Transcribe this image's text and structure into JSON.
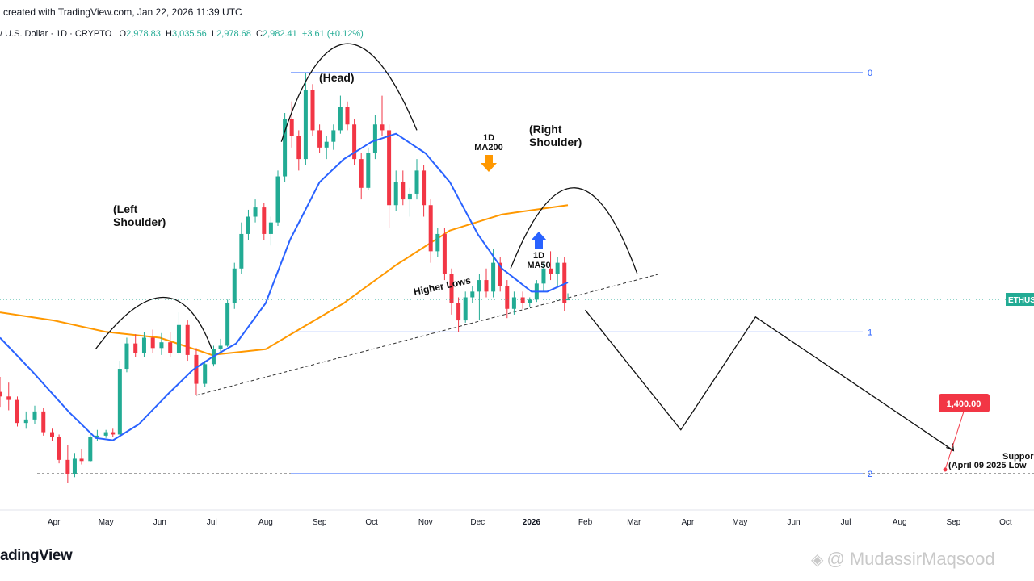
{
  "header": {
    "created_text": "created with TradingView.com, Jan 22, 2026 11:39 UTC"
  },
  "symbol": {
    "name": "/ U.S. Dollar · 1D · CRYPTO",
    "open_label": "O",
    "open": "2,978.83",
    "high_label": "H",
    "high": "3,035.56",
    "low_label": "L",
    "low": "2,978.68",
    "close_label": "C",
    "close": "2,982.41",
    "change": "+3.61 (+0.12%)"
  },
  "footer": {
    "logo": "adingView",
    "watermark": "@ MudassirMaqsood"
  },
  "colors": {
    "up": "#22ab94",
    "down": "#f23645",
    "ma50": "#2962ff",
    "ma200": "#ff9800",
    "fib": "#2962ff",
    "price_tag": "#f23645",
    "symbol_tag": "#22ab94"
  },
  "chart_data": {
    "type": "candlestick",
    "x_axis": {
      "labels": [
        "Apr",
        "May",
        "Jun",
        "Jul",
        "Aug",
        "Sep",
        "Oct",
        "Nov",
        "Dec",
        "2026",
        "Feb",
        "Mar",
        "Apr",
        "May",
        "Jun",
        "Jul",
        "Aug",
        "Sep",
        "Oct"
      ],
      "start": "2025-03-01"
    },
    "y_axis": {
      "min": 1300,
      "max": 5200,
      "grid": false,
      "visible": false
    },
    "candles": [
      [
        "2025-03-01",
        2180,
        2310,
        2050,
        2140
      ],
      [
        "2025-03-06",
        2140,
        2260,
        2020,
        2110
      ],
      [
        "2025-03-11",
        2110,
        2140,
        1880,
        1910
      ],
      [
        "2025-03-16",
        1910,
        2010,
        1860,
        1940
      ],
      [
        "2025-03-21",
        1940,
        2060,
        1900,
        2010
      ],
      [
        "2025-03-26",
        2010,
        2040,
        1800,
        1830
      ],
      [
        "2025-03-31",
        1830,
        1860,
        1750,
        1790
      ],
      [
        "2025-04-04",
        1790,
        1810,
        1560,
        1590
      ],
      [
        "2025-04-09",
        1590,
        1720,
        1390,
        1470
      ],
      [
        "2025-04-13",
        1470,
        1650,
        1440,
        1600
      ],
      [
        "2025-04-17",
        1600,
        1680,
        1550,
        1580
      ],
      [
        "2025-04-22",
        1580,
        1820,
        1570,
        1790
      ],
      [
        "2025-04-26",
        1790,
        1850,
        1750,
        1800
      ],
      [
        "2025-05-01",
        1800,
        1850,
        1780,
        1830
      ],
      [
        "2025-05-05",
        1830,
        1860,
        1790,
        1810
      ],
      [
        "2025-05-09",
        1810,
        2450,
        1800,
        2380
      ],
      [
        "2025-05-13",
        2380,
        2650,
        2350,
        2600
      ],
      [
        "2025-05-18",
        2600,
        2680,
        2480,
        2520
      ],
      [
        "2025-05-23",
        2520,
        2700,
        2480,
        2650
      ],
      [
        "2025-05-28",
        2650,
        2720,
        2520,
        2560
      ],
      [
        "2025-06-02",
        2560,
        2690,
        2500,
        2610
      ],
      [
        "2025-06-07",
        2610,
        2700,
        2480,
        2520
      ],
      [
        "2025-06-12",
        2520,
        2870,
        2500,
        2760
      ],
      [
        "2025-06-17",
        2760,
        2800,
        2450,
        2500
      ],
      [
        "2025-06-22",
        2500,
        2560,
        2150,
        2250
      ],
      [
        "2025-06-27",
        2250,
        2450,
        2220,
        2420
      ],
      [
        "2025-07-02",
        2420,
        2580,
        2400,
        2550
      ],
      [
        "2025-07-06",
        2550,
        2640,
        2510,
        2580
      ],
      [
        "2025-07-10",
        2580,
        2980,
        2570,
        2950
      ],
      [
        "2025-07-14",
        2950,
        3300,
        2900,
        3250
      ],
      [
        "2025-07-18",
        3250,
        3650,
        3200,
        3550
      ],
      [
        "2025-07-22",
        3550,
        3760,
        3500,
        3700
      ],
      [
        "2025-07-26",
        3700,
        3850,
        3650,
        3780
      ],
      [
        "2025-07-31",
        3780,
        3820,
        3500,
        3550
      ],
      [
        "2025-08-04",
        3550,
        3700,
        3450,
        3650
      ],
      [
        "2025-08-08",
        3650,
        4100,
        3620,
        4050
      ],
      [
        "2025-08-12",
        4050,
        4600,
        4000,
        4550
      ],
      [
        "2025-08-16",
        4550,
        4700,
        4300,
        4400
      ],
      [
        "2025-08-20",
        4400,
        4450,
        4100,
        4200
      ],
      [
        "2025-08-24",
        4200,
        4950,
        4150,
        4800
      ],
      [
        "2025-08-28",
        4800,
        4850,
        4400,
        4450
      ],
      [
        "2025-09-01",
        4450,
        4500,
        4250,
        4300
      ],
      [
        "2025-09-05",
        4300,
        4400,
        4200,
        4350
      ],
      [
        "2025-09-09",
        4350,
        4500,
        4280,
        4450
      ],
      [
        "2025-09-13",
        4450,
        4750,
        4420,
        4650
      ],
      [
        "2025-09-17",
        4650,
        4700,
        4450,
        4500
      ],
      [
        "2025-09-21",
        4500,
        4550,
        4150,
        4200
      ],
      [
        "2025-09-25",
        4200,
        4250,
        3850,
        3950
      ],
      [
        "2025-09-29",
        3950,
        4300,
        3930,
        4250
      ],
      [
        "2025-10-03",
        4250,
        4580,
        4200,
        4500
      ],
      [
        "2025-10-07",
        4500,
        4750,
        4400,
        4450
      ],
      [
        "2025-10-11",
        4450,
        4500,
        3600,
        3800
      ],
      [
        "2025-10-15",
        3800,
        4100,
        3750,
        4000
      ],
      [
        "2025-10-19",
        4000,
        4100,
        3800,
        3850
      ],
      [
        "2025-10-23",
        3850,
        3950,
        3700,
        3900
      ],
      [
        "2025-10-27",
        3900,
        4200,
        3850,
        4100
      ],
      [
        "2025-10-31",
        4100,
        4150,
        3700,
        3800
      ],
      [
        "2025-11-04",
        3800,
        3850,
        3300,
        3400
      ],
      [
        "2025-11-08",
        3400,
        3600,
        3350,
        3550
      ],
      [
        "2025-11-12",
        3550,
        3600,
        3150,
        3200
      ],
      [
        "2025-11-16",
        3200,
        3250,
        2850,
        2950
      ],
      [
        "2025-11-20",
        2950,
        3000,
        2700,
        2800
      ],
      [
        "2025-11-24",
        2800,
        3050,
        2780,
        3000
      ],
      [
        "2025-11-28",
        3000,
        3100,
        2950,
        3050
      ],
      [
        "2025-12-02",
        3050,
        3200,
        2800,
        3150
      ],
      [
        "2025-12-06",
        3150,
        3250,
        3000,
        3050
      ],
      [
        "2025-12-10",
        3050,
        3420,
        3000,
        3300
      ],
      [
        "2025-12-14",
        3300,
        3350,
        3050,
        3100
      ],
      [
        "2025-12-18",
        3100,
        3150,
        2820,
        2900
      ],
      [
        "2025-12-22",
        2900,
        3050,
        2850,
        3000
      ],
      [
        "2025-12-27",
        3000,
        3050,
        2900,
        2950
      ],
      [
        "2025-12-31",
        2950,
        3000,
        2920,
        2980
      ],
      [
        "2026-01-04",
        2980,
        3150,
        2960,
        3120
      ],
      [
        "2026-01-08",
        3120,
        3300,
        3050,
        3250
      ],
      [
        "2026-01-12",
        3250,
        3400,
        3150,
        3200
      ],
      [
        "2026-01-16",
        3200,
        3350,
        3100,
        3300
      ],
      [
        "2026-01-20",
        3300,
        3350,
        2880,
        2950
      ],
      [
        "2026-01-22",
        2978,
        3035,
        2978,
        2982
      ]
    ],
    "ma50": [
      [
        "2025-03-01",
        2650
      ],
      [
        "2025-03-20",
        2350
      ],
      [
        "2025-04-10",
        2000
      ],
      [
        "2025-04-25",
        1780
      ],
      [
        "2025-05-05",
        1760
      ],
      [
        "2025-05-20",
        1900
      ],
      [
        "2025-06-05",
        2150
      ],
      [
        "2025-06-20",
        2370
      ],
      [
        "2025-07-01",
        2480
      ],
      [
        "2025-07-15",
        2600
      ],
      [
        "2025-08-01",
        2950
      ],
      [
        "2025-08-15",
        3500
      ],
      [
        "2025-09-01",
        4000
      ],
      [
        "2025-09-15",
        4200
      ],
      [
        "2025-10-01",
        4350
      ],
      [
        "2025-10-15",
        4420
      ],
      [
        "2025-11-01",
        4250
      ],
      [
        "2025-11-15",
        4000
      ],
      [
        "2025-12-01",
        3550
      ],
      [
        "2025-12-15",
        3250
      ],
      [
        "2026-01-01",
        3050
      ],
      [
        "2026-01-10",
        3050
      ],
      [
        "2026-01-22",
        3130
      ]
    ],
    "ma200": [
      [
        "2025-03-01",
        2870
      ],
      [
        "2025-04-01",
        2800
      ],
      [
        "2025-05-01",
        2700
      ],
      [
        "2025-06-01",
        2650
      ],
      [
        "2025-07-01",
        2500
      ],
      [
        "2025-08-01",
        2550
      ],
      [
        "2025-08-20",
        2720
      ],
      [
        "2025-09-15",
        2950
      ],
      [
        "2025-10-15",
        3280
      ],
      [
        "2025-11-15",
        3580
      ],
      [
        "2025-12-15",
        3720
      ],
      [
        "2026-01-22",
        3800
      ]
    ],
    "fib_levels": [
      {
        "label": "0",
        "value": 4950
      },
      {
        "label": "1",
        "value": 2700
      },
      {
        "label": "2",
        "value": 1470
      }
    ],
    "current_price": {
      "label": "ETHUS",
      "value": 2982.41
    },
    "projection": [
      [
        "2026-02-01",
        2890
      ],
      [
        "2026-03-28",
        1850
      ],
      [
        "2026-05-10",
        2830
      ],
      [
        "2026-09-01",
        1670
      ]
    ],
    "trendline": {
      "from": [
        "2025-06-22",
        2150
      ],
      "to": [
        "2026-03-15",
        3200
      ]
    },
    "arcs": [
      {
        "from": [
          "2025-04-25",
          2550
        ],
        "peak": [
          "2025-06-03",
          3000
        ],
        "to": [
          "2025-07-01",
          2550
        ],
        "label": "(Left Shoulder)"
      },
      {
        "from": [
          "2025-08-10",
          4350
        ],
        "peak": [
          "2025-09-16",
          5200
        ],
        "to": [
          "2025-10-27",
          4450
        ],
        "label": "(Head)"
      },
      {
        "from": [
          "2025-12-20",
          3250
        ],
        "peak": [
          "2026-01-26",
          3950
        ],
        "to": [
          "2026-03-03",
          3200
        ],
        "label": "(Right Shoulder)"
      }
    ],
    "annotations": [
      {
        "id": "ma200",
        "lines": [
          "1D",
          "MA200"
        ],
        "arrow": "down"
      },
      {
        "id": "ma50",
        "lines": [
          "1D",
          "MA50"
        ],
        "arrow": "up"
      },
      {
        "id": "higher-lows",
        "text": "Higher Lows"
      },
      {
        "id": "support",
        "lines": [
          "Suppor",
          "(April 09 2025 Low"
        ]
      }
    ],
    "target": {
      "label": "1,400.00",
      "value": 1400
    }
  }
}
